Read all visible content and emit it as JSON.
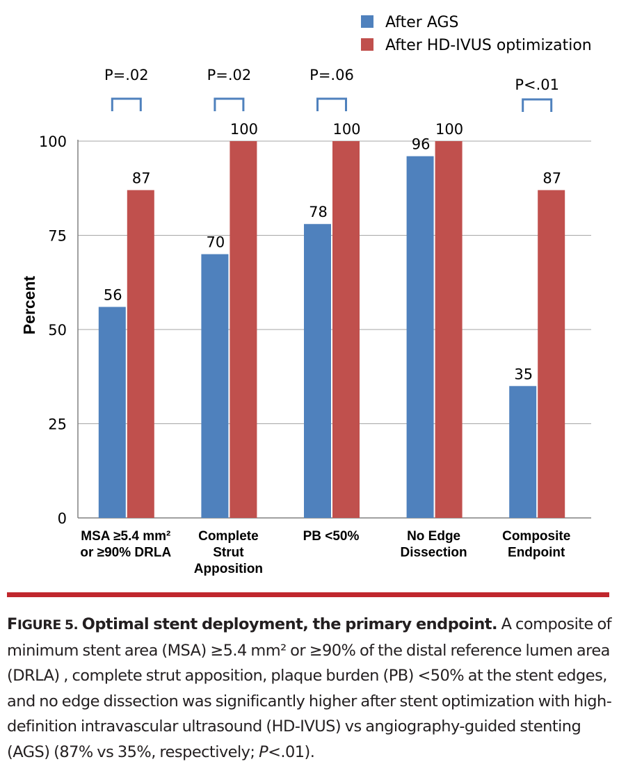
{
  "chart_data": {
    "type": "bar",
    "title": "",
    "xlabel": "",
    "ylabel": "Percent",
    "ylim": [
      0,
      100
    ],
    "yticks": [
      0,
      25,
      50,
      75,
      100
    ],
    "grid": true,
    "legend_position": "top-right",
    "categories": [
      [
        "MSA ≥5.4 mm²",
        "or ≥90% DRLA"
      ],
      [
        "Complete",
        "Strut",
        "Apposition"
      ],
      [
        "PB <50%"
      ],
      [
        "No Edge",
        "Dissection"
      ],
      [
        "Composite",
        "Endpoint"
      ]
    ],
    "series": [
      {
        "name": "After AGS",
        "color": "#4f81bd",
        "values": [
          56,
          70,
          78,
          96,
          35
        ]
      },
      {
        "name": "After HD-IVUS optimization",
        "color": "#c0504d",
        "values": [
          87,
          100,
          100,
          100,
          87
        ]
      }
    ],
    "p_values": [
      "P=.02",
      "P=.02",
      "P=.06",
      "",
      "P<.01"
    ]
  },
  "caption": {
    "label_prefix": "F",
    "label_rest": "IGURE 5.",
    "title": "Optimal stent deployment, the primary endpoint.",
    "body": "A composite of minimum stent area (MSA) ≥5.4 mm² or ≥90% of the distal reference lumen area (DRLA) , complete strut apposition, plaque burden (PB) <50% at the stent edges, and no edge dissection was significantly higher after stent optimization with high-definition intravascular ultrasound (HD-IVUS) vs angiography-guided stenting (AGS) (87% vs 35%, respectively; ",
    "body_italic": "P",
    "body_end": "<.01)."
  },
  "colors": {
    "rule": "#c0272d",
    "axis": "#808080",
    "grid": "#a6a6a6"
  }
}
